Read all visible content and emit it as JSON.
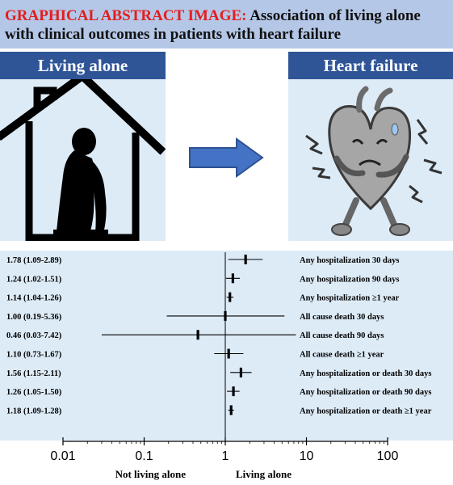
{
  "title": {
    "tag": "GRAPHICAL ABSTRACT IMAGE:",
    "text": "Association of living alone with clinical outcomes in patients with heart failure"
  },
  "panels": {
    "left_header": "Living alone",
    "right_header": "Heart failure"
  },
  "colors": {
    "title_bg": "#b4c7e7",
    "panel_bg": "#ddebf7",
    "header_bg": "#2f5597",
    "arrow": "#4472c4",
    "tag": "#e41d1d"
  },
  "chart_data": {
    "type": "forest",
    "x_scale": "log",
    "xlim": [
      0.01,
      100
    ],
    "x_ticks": [
      0.01,
      0.1,
      1,
      10,
      100
    ],
    "x_tick_labels": [
      "0.01",
      "0.1",
      "1",
      "10",
      "100"
    ],
    "reference_line": 1,
    "left_caption": "Not living alone",
    "right_caption": "Living alone",
    "rows": [
      {
        "label": "Any hospitalization 30 days",
        "ci_text": "1.78 (1.09-2.89)",
        "est": 1.78,
        "lo": 1.09,
        "hi": 2.89
      },
      {
        "label": "Any hospitalization 90 days",
        "ci_text": "1.24 (1.02-1.51)",
        "est": 1.24,
        "lo": 1.02,
        "hi": 1.51
      },
      {
        "label": "Any hospitalization ≥1 year",
        "ci_text": "1.14 (1.04-1.26)",
        "est": 1.14,
        "lo": 1.04,
        "hi": 1.26
      },
      {
        "label": "All cause death 30 days",
        "ci_text": "1.00 (0.19-5.36)",
        "est": 1.0,
        "lo": 0.19,
        "hi": 5.36
      },
      {
        "label": "All cause death 90 days",
        "ci_text": "0.46 (0.03-7.42)",
        "est": 0.46,
        "lo": 0.03,
        "hi": 7.42
      },
      {
        "label": "All cause death ≥1 year",
        "ci_text": "1.10 (0.73-1.67)",
        "est": 1.1,
        "lo": 0.73,
        "hi": 1.67
      },
      {
        "label": "Any hospitalization or death 30 days",
        "ci_text": "1.56 (1.15-2.11)",
        "est": 1.56,
        "lo": 1.15,
        "hi": 2.11
      },
      {
        "label": "Any hospitalization or death 90 days",
        "ci_text": "1.26 (1.05-1.50)",
        "est": 1.26,
        "lo": 1.05,
        "hi": 1.5
      },
      {
        "label": "Any hospitalization or death ≥1 year",
        "ci_text": "1.18 (1.09-1.28)",
        "est": 1.18,
        "lo": 1.09,
        "hi": 1.28
      }
    ]
  }
}
